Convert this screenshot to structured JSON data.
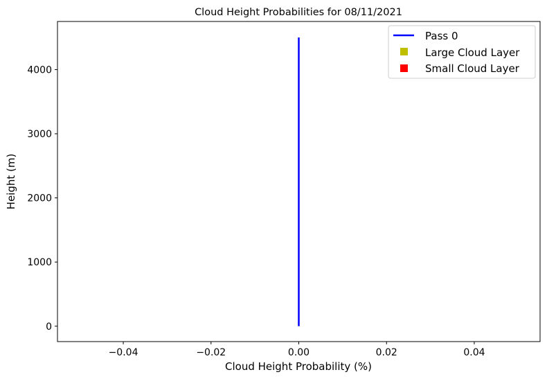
{
  "chart_data": {
    "type": "line",
    "title": "Cloud Height Probabilities for 08/11/2021",
    "xlabel": "Cloud Height Probability (%)",
    "ylabel": "Height (m)",
    "xlim": [
      -0.055,
      0.055
    ],
    "ylim": [
      -240,
      4750
    ],
    "xticks": [
      -0.04,
      -0.02,
      0.0,
      0.02,
      0.04
    ],
    "xtick_labels": [
      "−0.04",
      "−0.02",
      "0.00",
      "0.02",
      "0.04"
    ],
    "yticks": [
      0,
      1000,
      2000,
      3000,
      4000
    ],
    "ytick_labels": [
      "0",
      "1000",
      "2000",
      "3000",
      "4000"
    ],
    "grid": false,
    "legend_position": "top-right",
    "series": [
      {
        "name": "Pass 0",
        "kind": "line",
        "color": "#0000ff",
        "x": [
          0.0,
          0.0
        ],
        "y": [
          0,
          4500
        ]
      },
      {
        "name": "Large Cloud Layer",
        "kind": "scatter",
        "color": "#bfbf00",
        "marker": "square",
        "x": [],
        "y": []
      },
      {
        "name": "Small Cloud Layer",
        "kind": "scatter",
        "color": "#ff0000",
        "marker": "square",
        "x": [],
        "y": []
      }
    ]
  }
}
